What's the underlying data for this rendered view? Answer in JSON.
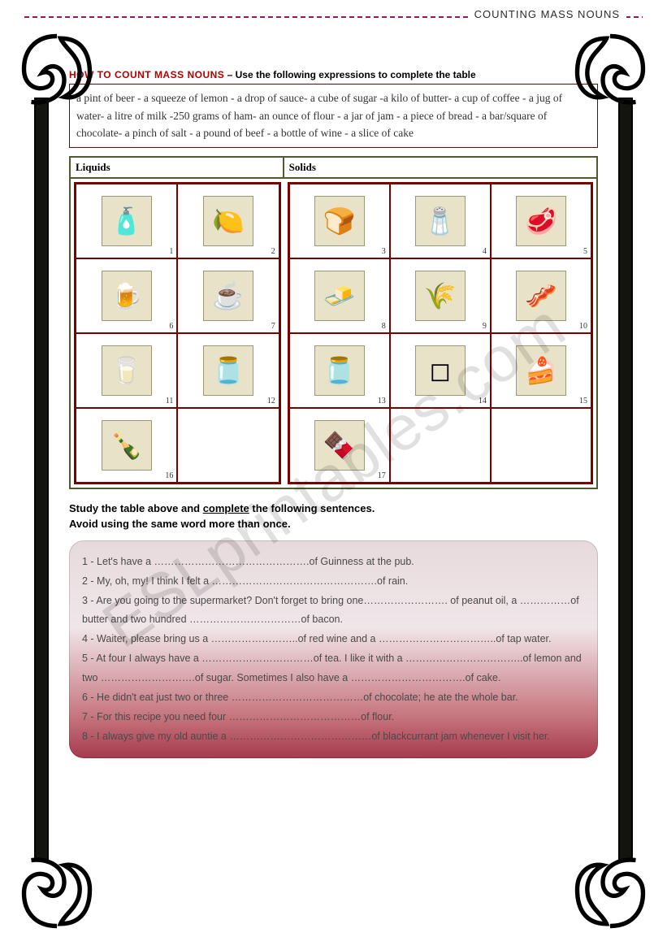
{
  "header": {
    "title": "COUNTING MASS NOUNS"
  },
  "watermark": "ESLprintables.com",
  "instruction": {
    "title_red": "HOW TO COUNT MASS NOUNS",
    "title_rest": " – Use the following expressions to complete the table"
  },
  "wordbank": "a pint of beer - a squeeze of lemon - a drop of sauce- a cube of sugar -a kilo of butter- a cup of coffee - a jug of water- a litre of milk -250 grams of ham- an ounce of flour - a jar of jam - a piece of bread - a bar/square of chocolate- a pinch of salt - a pound of beef - a bottle of wine - a slice of cake",
  "columns": {
    "liquids": "Liquids",
    "solids": "Solids"
  },
  "liquid_cells": [
    {
      "num": "1",
      "glyph": "🧴"
    },
    {
      "num": "2",
      "glyph": "🍋"
    },
    {
      "num": "6",
      "glyph": "🍺"
    },
    {
      "num": "7",
      "glyph": "☕"
    },
    {
      "num": "11",
      "glyph": "🥛"
    },
    {
      "num": "12",
      "glyph": "🫙"
    },
    {
      "num": "16",
      "glyph": "🍾"
    },
    {
      "num": "",
      "glyph": ""
    }
  ],
  "solid_cells": [
    {
      "num": "3",
      "glyph": "🍞"
    },
    {
      "num": "4",
      "glyph": "🧂"
    },
    {
      "num": "5",
      "glyph": "🥩"
    },
    {
      "num": "8",
      "glyph": "🧈"
    },
    {
      "num": "9",
      "glyph": "🌾"
    },
    {
      "num": "10",
      "glyph": "🥓"
    },
    {
      "num": "13",
      "glyph": "🫙"
    },
    {
      "num": "14",
      "glyph": "◻"
    },
    {
      "num": "15",
      "glyph": "🍰"
    },
    {
      "num": "17",
      "glyph": "🍫"
    },
    {
      "num": "",
      "glyph": ""
    },
    {
      "num": "",
      "glyph": ""
    }
  ],
  "study": {
    "line1a": "Study the table above and ",
    "line1u": "complete",
    "line1b": " the following sentences.",
    "line2": "Avoid using the same word more than once."
  },
  "sentences": [
    "1 - Let's have a ……………………………………….of Guinness at the pub.",
    "2 - My, oh, my! I think I felt a ………………………………………….of rain.",
    "3 - Are you going to the supermarket? Don't forget to bring one……………………. of peanut oil, a ……………of butter and two hundred ……………………………of bacon.",
    "4 - Waiter, please bring us a ……………………..of red wine and a ……………………………..of tap water.",
    "5 - At four I always have a ……………………………of tea. I like it with a ……………………………..of lemon and two ……………………….of sugar. Sometimes I also have a …………………………….of cake.",
    "6 - He didn't eat just two or three …………………………………of chocolate; he ate the whole bar.",
    "7 - For this recipe you need four …………………………………of flour.",
    "8 - I always give my old auntie a ……………………………………of blackcurrant jam whenever I visit her."
  ],
  "colors": {
    "header_rule": "#8b1a5f",
    "title_red": "#b40000",
    "wordbox_border": "#7a0000",
    "grid_border": "#4f5a2e",
    "cell_border": "#7a0000",
    "pic_bg": "#e8e2c8",
    "side_bar": "#14140f",
    "sentbox_grad_top": "#e7dadc",
    "sentbox_grad_bot": "#a63a4e"
  }
}
